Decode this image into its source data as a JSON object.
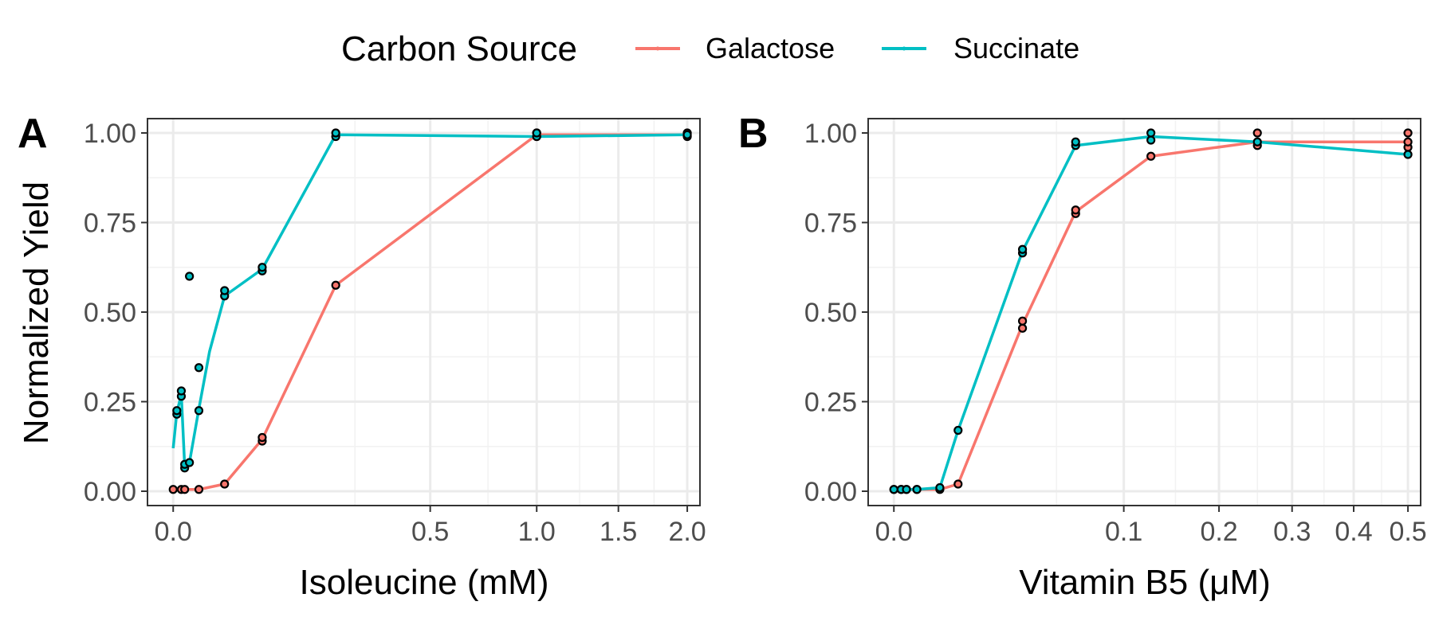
{
  "legend": {
    "title": "Carbon Source",
    "entries": [
      {
        "name": "Galactose",
        "color": "#F8766D"
      },
      {
        "name": "Succinate",
        "color": "#00BFC4"
      }
    ]
  },
  "chart_data": [
    {
      "type": "line",
      "panel": "A",
      "xlabel": "Isoleucine (mM)",
      "ylabel": "Normalized Yield",
      "x_scale": "sqrt",
      "xlim": [
        -0.005,
        2.1
      ],
      "ylim": [
        -0.04,
        1.04
      ],
      "x_ticks": [
        0.0,
        0.5,
        1.0,
        1.5,
        2.0
      ],
      "x_tick_labels": [
        "0.0",
        "0.5",
        "1.0",
        "1.5",
        "2.0"
      ],
      "y_ticks": [
        0.0,
        0.25,
        0.5,
        0.75,
        1.0
      ],
      "y_tick_labels": [
        "0.00",
        "0.25",
        "0.50",
        "0.75",
        "1.00"
      ],
      "grid": true,
      "series": [
        {
          "name": "Galactose",
          "color": "#F8766D",
          "line": [
            [
              0,
              0.005
            ],
            [
              0.0005,
              0.005
            ],
            [
              0.001,
              0.005
            ],
            [
              0.005,
              0.005
            ],
            [
              0.02,
              0.02
            ],
            [
              0.06,
              0.145
            ],
            [
              0.2,
              0.575
            ],
            [
              1.0,
              0.995
            ],
            [
              2.0,
              0.995
            ]
          ],
          "points": [
            [
              0,
              0.005
            ],
            [
              0.0005,
              0.005
            ],
            [
              0.001,
              0.005
            ],
            [
              0.005,
              0.005
            ],
            [
              0.02,
              0.02
            ],
            [
              0.06,
              0.14
            ],
            [
              0.06,
              0.15
            ],
            [
              0.2,
              0.575
            ],
            [
              1.0,
              0.99
            ],
            [
              1.0,
              1.0
            ],
            [
              2.0,
              0.99
            ],
            [
              2.0,
              1.0
            ]
          ]
        },
        {
          "name": "Succinate",
          "color": "#00BFC4",
          "line": [
            [
              0,
              0.12
            ],
            [
              0.0001,
              0.22
            ],
            [
              0.0005,
              0.27
            ],
            [
              0.001,
              0.07
            ],
            [
              0.002,
              0.08
            ],
            [
              0.005,
              0.23
            ],
            [
              0.01,
              0.39
            ],
            [
              0.02,
              0.545
            ],
            [
              0.06,
              0.62
            ],
            [
              0.2,
              0.995
            ],
            [
              1.0,
              0.99
            ],
            [
              2.0,
              0.995
            ]
          ],
          "points": [
            [
              0.0001,
              0.215
            ],
            [
              0.0001,
              0.225
            ],
            [
              0.0005,
              0.265
            ],
            [
              0.0005,
              0.28
            ],
            [
              0.001,
              0.065
            ],
            [
              0.001,
              0.075
            ],
            [
              0.002,
              0.08
            ],
            [
              0.002,
              0.6
            ],
            [
              0.005,
              0.225
            ],
            [
              0.005,
              0.345
            ],
            [
              0.02,
              0.545
            ],
            [
              0.02,
              0.56
            ],
            [
              0.06,
              0.615
            ],
            [
              0.06,
              0.625
            ],
            [
              0.2,
              0.99
            ],
            [
              0.2,
              1.0
            ],
            [
              1.0,
              0.99
            ],
            [
              1.0,
              1.0
            ],
            [
              2.0,
              0.995
            ]
          ]
        }
      ]
    },
    {
      "type": "line",
      "panel": "B",
      "xlabel": "Vitamin B5 (μM)",
      "ylabel": "",
      "x_scale": "sqrt",
      "xlim": [
        -0.00125,
        0.525
      ],
      "ylim": [
        -0.04,
        1.04
      ],
      "x_ticks": [
        0.0,
        0.1,
        0.2,
        0.3,
        0.4,
        0.5
      ],
      "x_tick_labels": [
        "0.0",
        "0.1",
        "0.2",
        "0.3",
        "0.4",
        "0.5"
      ],
      "y_ticks": [
        0.0,
        0.25,
        0.5,
        0.75,
        1.0
      ],
      "y_tick_labels": [
        "0.00",
        "0.25",
        "0.50",
        "0.75",
        "1.00"
      ],
      "grid": true,
      "series": [
        {
          "name": "Galactose",
          "color": "#F8766D",
          "line": [
            [
              0,
              0.005
            ],
            [
              0.0001,
              0.005
            ],
            [
              0.0003,
              0.005
            ],
            [
              0.001,
              0.005
            ],
            [
              0.004,
              0.005
            ],
            [
              0.0078,
              0.02
            ],
            [
              0.0313,
              0.465
            ],
            [
              0.0625,
              0.78
            ],
            [
              0.125,
              0.935
            ],
            [
              0.25,
              0.975
            ],
            [
              0.5,
              0.975
            ]
          ],
          "points": [
            [
              0,
              0.005
            ],
            [
              0.0001,
              0.005
            ],
            [
              0.0003,
              0.005
            ],
            [
              0.001,
              0.005
            ],
            [
              0.004,
              0.005
            ],
            [
              0.0078,
              0.02
            ],
            [
              0.0313,
              0.455
            ],
            [
              0.0313,
              0.475
            ],
            [
              0.0625,
              0.775
            ],
            [
              0.0625,
              0.785
            ],
            [
              0.125,
              0.935
            ],
            [
              0.25,
              0.965
            ],
            [
              0.25,
              1.0
            ],
            [
              0.5,
              0.96
            ],
            [
              0.5,
              0.975
            ],
            [
              0.5,
              1.0
            ]
          ]
        },
        {
          "name": "Succinate",
          "color": "#00BFC4",
          "line": [
            [
              0,
              0.005
            ],
            [
              0.0001,
              0.005
            ],
            [
              0.0003,
              0.005
            ],
            [
              0.001,
              0.005
            ],
            [
              0.004,
              0.01
            ],
            [
              0.0078,
              0.17
            ],
            [
              0.0313,
              0.67
            ],
            [
              0.0625,
              0.965
            ],
            [
              0.125,
              0.99
            ],
            [
              0.25,
              0.975
            ],
            [
              0.5,
              0.94
            ]
          ],
          "points": [
            [
              0,
              0.005
            ],
            [
              0.0001,
              0.005
            ],
            [
              0.0003,
              0.005
            ],
            [
              0.001,
              0.005
            ],
            [
              0.004,
              0.01
            ],
            [
              0.0078,
              0.17
            ],
            [
              0.0313,
              0.665
            ],
            [
              0.0313,
              0.675
            ],
            [
              0.0625,
              0.965
            ],
            [
              0.0625,
              0.975
            ],
            [
              0.125,
              0.98
            ],
            [
              0.125,
              1.0
            ],
            [
              0.25,
              0.975
            ],
            [
              0.5,
              0.94
            ]
          ]
        }
      ]
    }
  ]
}
